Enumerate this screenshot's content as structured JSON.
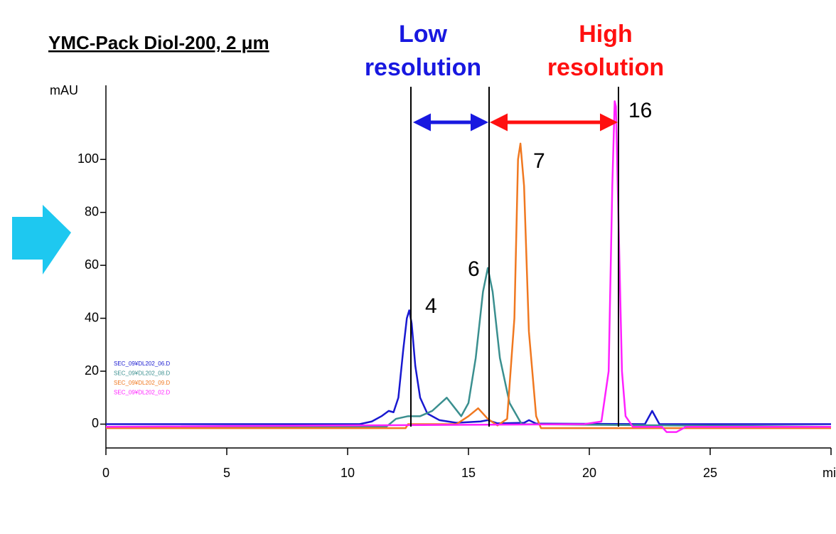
{
  "chart_data": {
    "type": "line",
    "title": "YMC-Pack Diol-200, 2 μm",
    "headers": [
      "Low resolution",
      "High resolution"
    ],
    "y_label": "mAU",
    "x_label": "mi",
    "annotations": [
      "4",
      "6",
      "7",
      "16"
    ],
    "xlim": [
      0,
      30
    ],
    "xticks": [
      0,
      5,
      10,
      15,
      20,
      25
    ],
    "ylim": [
      -9,
      128
    ],
    "yticks": [
      0,
      20,
      40,
      60,
      80,
      100
    ],
    "legend": "left",
    "series": [
      {
        "name": "SEC_09¥DL202_06.D",
        "color": "#1818d0",
        "x": [
          0,
          10.5,
          11.0,
          11.4,
          11.7,
          11.9,
          12.1,
          12.3,
          12.45,
          12.55,
          12.65,
          12.8,
          13.0,
          13.3,
          13.8,
          14.5,
          15.5,
          15.8,
          16.2,
          17.3,
          17.5,
          17.8,
          22.3,
          22.6,
          22.9,
          30
        ],
        "values": [
          0,
          0,
          1,
          3,
          5,
          4.5,
          10,
          28,
          40,
          43,
          38,
          22,
          10,
          4,
          1.5,
          0.5,
          1,
          1.5,
          0.3,
          0.5,
          1.5,
          0.2,
          0,
          5,
          0,
          0
        ]
      },
      {
        "name": "SEC_09¥DL202_08.D",
        "color": "#3a8f8f",
        "x": [
          0,
          11.6,
          12.0,
          12.5,
          13.0,
          13.5,
          14.1,
          14.7,
          15.0,
          15.3,
          15.6,
          15.8,
          16.0,
          16.3,
          16.7,
          17.2,
          30
        ],
        "values": [
          -1,
          -1,
          2,
          3,
          3,
          5,
          10,
          3,
          8,
          25,
          50,
          59,
          50,
          25,
          8,
          0,
          -1
        ]
      },
      {
        "name": "SEC_09¥DL202_09.D",
        "color": "#f07820",
        "x": [
          0,
          12.4,
          12.5,
          14.5,
          15.0,
          15.4,
          15.8,
          16.2,
          16.6,
          16.9,
          17.05,
          17.15,
          17.3,
          17.5,
          17.8,
          18.0,
          30
        ],
        "values": [
          -1.5,
          -1.5,
          0,
          0,
          3,
          6,
          2,
          -0.5,
          2,
          40,
          100,
          106,
          90,
          35,
          3,
          -1.5,
          -1.5
        ]
      },
      {
        "name": "SEC_09¥DL202_02.D",
        "color": "#ff20ff",
        "x": [
          0,
          19.8,
          20.5,
          20.8,
          20.95,
          21.05,
          21.1,
          21.2,
          21.35,
          21.5,
          21.8,
          23.0,
          23.2,
          23.6,
          24,
          30
        ],
        "values": [
          -1,
          0,
          1,
          20,
          90,
          122,
          120,
          80,
          20,
          3,
          -1,
          -1,
          -3,
          -3,
          -1,
          -1
        ]
      }
    ]
  }
}
